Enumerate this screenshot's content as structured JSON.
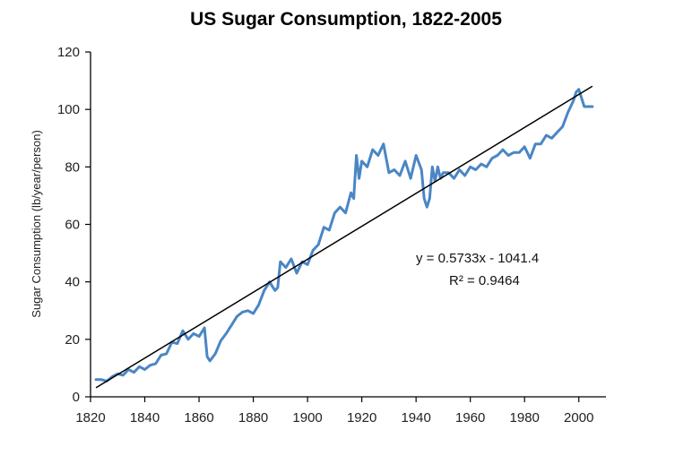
{
  "chart_data": {
    "type": "line",
    "title": "US Sugar Consumption, 1822-2005",
    "xlabel": "",
    "ylabel": "Sugar Consumption (lb/year/person)",
    "xlim": [
      1820,
      2010
    ],
    "ylim": [
      0,
      120
    ],
    "x_ticks": [
      1820,
      1840,
      1860,
      1880,
      1900,
      1920,
      1940,
      1960,
      1980,
      2000
    ],
    "y_ticks": [
      0,
      20,
      40,
      60,
      80,
      100,
      120
    ],
    "grid": false,
    "legend": "none",
    "series": [
      {
        "color": "#4a86c5",
        "x": [
          1822,
          1824,
          1826,
          1828,
          1830,
          1832,
          1834,
          1836,
          1838,
          1840,
          1842,
          1844,
          1846,
          1848,
          1850,
          1852,
          1854,
          1856,
          1858,
          1860,
          1862,
          1863,
          1864,
          1866,
          1868,
          1870,
          1872,
          1874,
          1876,
          1878,
          1880,
          1882,
          1884,
          1886,
          1888,
          1889,
          1890,
          1892,
          1894,
          1896,
          1898,
          1900,
          1902,
          1904,
          1906,
          1908,
          1910,
          1912,
          1914,
          1916,
          1917,
          1918,
          1919,
          1920,
          1922,
          1924,
          1926,
          1928,
          1930,
          1932,
          1934,
          1936,
          1938,
          1940,
          1942,
          1943,
          1944,
          1945,
          1946,
          1947,
          1948,
          1949,
          1950,
          1952,
          1954,
          1956,
          1958,
          1960,
          1962,
          1964,
          1966,
          1968,
          1970,
          1972,
          1974,
          1976,
          1978,
          1980,
          1982,
          1984,
          1986,
          1988,
          1990,
          1992,
          1994,
          1996,
          1998,
          1999,
          2000,
          2002,
          2005
        ],
        "y": [
          6,
          6,
          5.5,
          7,
          8,
          7.5,
          9.5,
          8.5,
          10.5,
          9.5,
          11,
          11.5,
          14.5,
          15,
          19,
          18.5,
          23,
          20,
          22,
          21,
          24,
          14,
          12.5,
          15,
          19.5,
          22,
          25,
          28,
          29.5,
          30,
          29,
          32,
          37,
          40,
          37,
          38,
          47,
          45,
          48,
          43,
          47,
          46,
          51,
          53,
          59,
          58,
          64,
          66,
          64,
          71,
          69,
          84,
          76,
          82,
          80,
          86,
          84,
          88,
          78,
          79,
          77,
          82,
          76,
          84,
          79,
          69,
          66,
          69,
          80,
          75,
          80,
          76,
          78,
          78,
          76,
          79,
          77,
          80,
          79,
          81,
          80,
          83,
          84,
          86,
          84,
          85,
          85,
          87,
          83,
          88,
          88,
          91,
          90,
          92,
          94,
          99,
          103,
          106,
          107,
          101,
          101
        ]
      }
    ],
    "trendline": {
      "slope": 0.5733,
      "intercept": -1041.4,
      "x_range": [
        1822,
        2005
      ],
      "color": "#000000"
    },
    "annotations": [
      "y = 0.5733x - 1041.4",
      "R² = 0.9464"
    ]
  }
}
